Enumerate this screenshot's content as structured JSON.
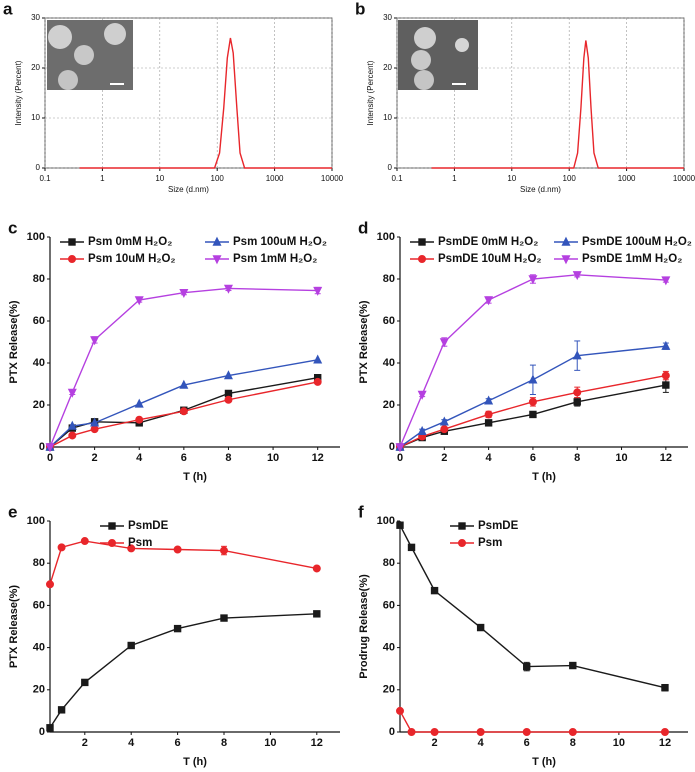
{
  "chart_data": [
    {
      "type": "line",
      "label": "a",
      "xlabel": "Size (d.nm)",
      "ylabel": "Intensity (Percent)",
      "log_x": true,
      "grid": true,
      "xlim": [
        0.1,
        10000
      ],
      "xticks": [
        0.1,
        1,
        10,
        100,
        1000,
        10000
      ],
      "ylim": [
        0,
        30
      ],
      "yticks": [
        0,
        10,
        20,
        30
      ],
      "x": [
        0.4,
        90,
        110,
        130,
        150,
        170,
        190,
        220,
        250,
        300,
        10000
      ],
      "series": [
        {
          "color": "#e8262b",
          "values": [
            0,
            0,
            3,
            12,
            22,
            26,
            23,
            12,
            3,
            0,
            0
          ]
        }
      ]
    },
    {
      "type": "line",
      "label": "b",
      "xlabel": "Size (d.nm)",
      "ylabel": "Intensity (Percent)",
      "log_x": true,
      "grid": true,
      "xlim": [
        0.1,
        10000
      ],
      "xticks": [
        0.1,
        1,
        10,
        100,
        1000,
        10000
      ],
      "ylim": [
        0,
        30
      ],
      "yticks": [
        0,
        10,
        20,
        30
      ],
      "x": [
        0.4,
        120,
        140,
        160,
        180,
        195,
        215,
        240,
        270,
        320,
        10000
      ],
      "series": [
        {
          "color": "#e8262b",
          "values": [
            0,
            0,
            3,
            12,
            22,
            25.5,
            22,
            12,
            3,
            0,
            0
          ]
        }
      ]
    },
    {
      "type": "line",
      "label": "c",
      "xlabel": "T (h)",
      "ylabel": "PTX Release(%)",
      "legend_columns": 2,
      "xlim": [
        0,
        13
      ],
      "xticks": [
        0,
        2,
        4,
        6,
        8,
        10,
        12
      ],
      "ylim": [
        0,
        100
      ],
      "yticks": [
        0,
        20,
        40,
        60,
        80,
        100
      ],
      "x": [
        0,
        1,
        2,
        4,
        6,
        8,
        12
      ],
      "series": [
        {
          "name": "Psm 0mM H₂O₂",
          "color": "#1a1a1a",
          "marker": "square",
          "values": [
            0,
            9,
            12,
            11.5,
            17.5,
            25.5,
            33
          ]
        },
        {
          "name": "Psm 10uM H₂O₂",
          "color": "#e8262b",
          "marker": "circle",
          "values": [
            0,
            5.5,
            8.5,
            13,
            17,
            22.5,
            31
          ]
        },
        {
          "name": "Psm 100uM H₂O₂",
          "color": "#3355bb",
          "marker": "triangle-up",
          "values": [
            0,
            10,
            11.5,
            20.5,
            29.5,
            34,
            41.5
          ]
        },
        {
          "name": "Psm 1mM H₂O₂",
          "color": "#b540e0",
          "marker": "triangle-down",
          "values": [
            0,
            26,
            51,
            70,
            73.5,
            75.5,
            74.5
          ],
          "errors": [
            0,
            1,
            1.5,
            1,
            1,
            1,
            1.5
          ]
        }
      ]
    },
    {
      "type": "line",
      "label": "d",
      "xlabel": "T (h)",
      "ylabel": "PTX Release(%)",
      "legend_columns": 2,
      "xlim": [
        0,
        13
      ],
      "xticks": [
        0,
        2,
        4,
        6,
        8,
        10,
        12
      ],
      "ylim": [
        0,
        100
      ],
      "yticks": [
        0,
        20,
        40,
        60,
        80,
        100
      ],
      "x": [
        0,
        1,
        2,
        4,
        6,
        8,
        12
      ],
      "series": [
        {
          "name": "PsmDE 0mM H₂O₂",
          "color": "#1a1a1a",
          "marker": "square",
          "values": [
            0,
            4.5,
            7.5,
            11.5,
            15.5,
            21.5,
            29.5
          ],
          "errors": [
            0,
            1,
            1,
            1,
            1,
            2,
            3.5
          ]
        },
        {
          "name": "PsmDE 10uM H₂O₂",
          "color": "#e8262b",
          "marker": "circle",
          "values": [
            0,
            5,
            8.5,
            15.5,
            21.5,
            26,
            34
          ],
          "errors": [
            0,
            1,
            1,
            1.5,
            2,
            2.5,
            2
          ]
        },
        {
          "name": "PsmDE 100uM H₂O₂",
          "color": "#3355bb",
          "marker": "triangle-up",
          "values": [
            0,
            7.5,
            12,
            22,
            32,
            43.5,
            48
          ],
          "errors": [
            0,
            1,
            1,
            1,
            7,
            7,
            1.5
          ]
        },
        {
          "name": "PsmDE 1mM H₂O₂",
          "color": "#b540e0",
          "marker": "triangle-down",
          "values": [
            0,
            25,
            50,
            70,
            80,
            82,
            79.5
          ],
          "errors": [
            0,
            1,
            2,
            1.5,
            2,
            1,
            1
          ]
        }
      ]
    },
    {
      "type": "line",
      "label": "e",
      "xlabel": "T (h)",
      "ylabel": "PTX Release(%)",
      "legend_columns": 1,
      "xlim": [
        0.5,
        13
      ],
      "xticks": [
        2,
        4,
        6,
        8,
        10,
        12
      ],
      "ylim": [
        0,
        100
      ],
      "yticks": [
        0,
        20,
        40,
        60,
        80,
        100
      ],
      "x": [
        0.5,
        1,
        2,
        4,
        6,
        8,
        12
      ],
      "series": [
        {
          "name": "PsmDE",
          "color": "#1a1a1a",
          "marker": "square",
          "values": [
            2,
            10.5,
            23.5,
            41,
            49,
            54,
            56
          ],
          "errors": [
            0,
            0,
            0,
            1,
            1,
            1,
            1
          ]
        },
        {
          "name": "Psm",
          "color": "#e8262b",
          "marker": "circle",
          "values": [
            70,
            87.5,
            90.5,
            87,
            86.5,
            86,
            77.5
          ],
          "errors": [
            0,
            0,
            0,
            0,
            0,
            2,
            1
          ]
        }
      ]
    },
    {
      "type": "line",
      "label": "f",
      "xlabel": "T (h)",
      "ylabel": "Prodrug Release(%)",
      "legend_columns": 1,
      "xlim": [
        0.5,
        13
      ],
      "xticks": [
        2,
        4,
        6,
        8,
        10,
        12
      ],
      "ylim": [
        0,
        100
      ],
      "yticks": [
        0,
        20,
        40,
        60,
        80,
        100
      ],
      "x": [
        0.5,
        1,
        2,
        4,
        6,
        8,
        12
      ],
      "series": [
        {
          "name": "PsmDE",
          "color": "#1a1a1a",
          "marker": "square",
          "values": [
            98,
            87.5,
            67,
            49.5,
            31,
            31.5,
            21
          ],
          "errors": [
            0,
            0,
            0,
            0,
            2,
            0,
            1.5
          ]
        },
        {
          "name": "Psm",
          "color": "#e8262b",
          "marker": "circle",
          "values": [
            10,
            0,
            0,
            0,
            0,
            0,
            0
          ]
        }
      ]
    }
  ]
}
